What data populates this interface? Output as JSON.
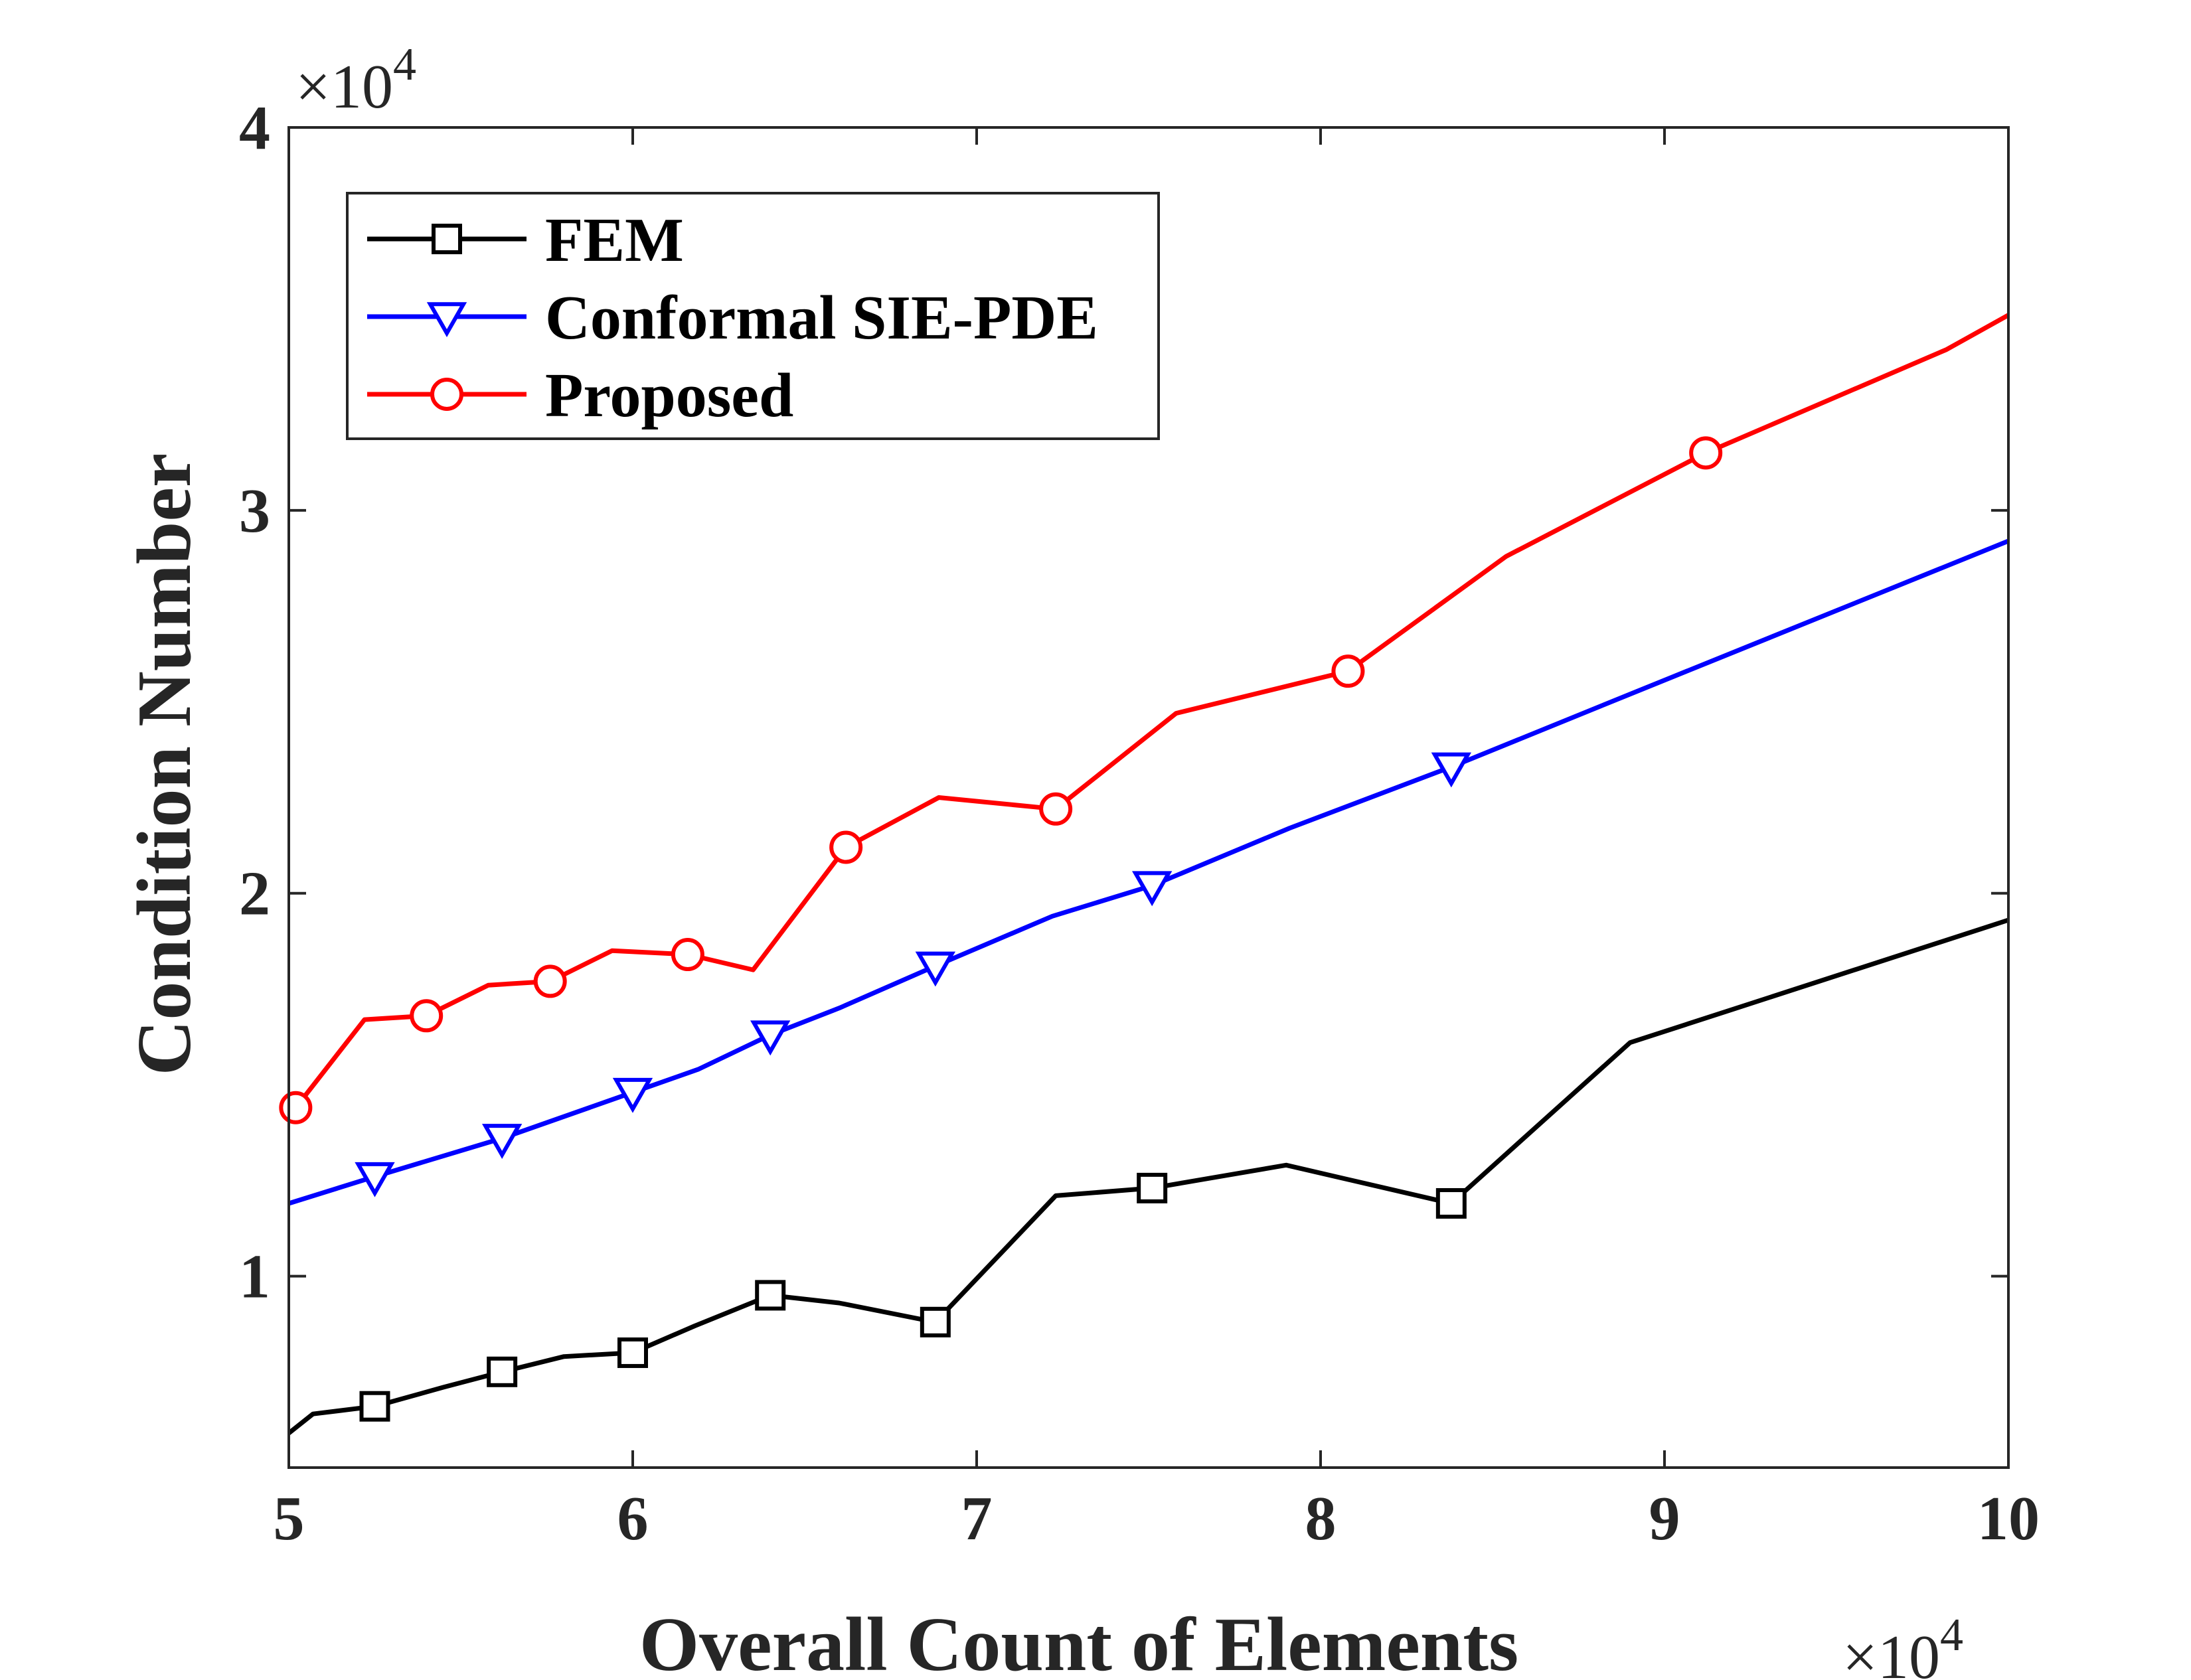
{
  "chart_data": {
    "type": "line",
    "title": "",
    "xlabel": "Overall Count of Elements",
    "ylabel": "Condition Number",
    "x_exponent_label": "×10",
    "x_exponent": "4",
    "y_exponent_label": "×10",
    "y_exponent": "4",
    "xlim": [
      50000,
      100000
    ],
    "ylim": [
      5000,
      40000
    ],
    "xticks": [
      50000,
      60000,
      70000,
      80000,
      90000,
      100000
    ],
    "xtick_labels": [
      "5",
      "6",
      "7",
      "8",
      "9",
      "10"
    ],
    "yticks": [
      10000,
      20000,
      30000,
      40000
    ],
    "ytick_labels": [
      "1",
      "2",
      "3",
      "4"
    ],
    "grid": false,
    "legend_position": "top-left",
    "series": [
      {
        "name": "FEM",
        "color": "#000000",
        "marker": "square",
        "x": [
          50000,
          50700,
          52500,
          54500,
          56200,
          58000,
          60000,
          61800,
          64000,
          66000,
          68800,
          72300,
          75100,
          79000,
          83800,
          89000,
          100000
        ],
        "y": [
          5900,
          6400,
          6600,
          7100,
          7500,
          7900,
          8000,
          8700,
          9500,
          9300,
          8800,
          12100,
          12300,
          12900,
          11900,
          16100,
          19300
        ],
        "marker_x": [
          52500,
          56200,
          60000,
          64000,
          68800,
          75100,
          83800
        ],
        "marker_y": [
          6600,
          7500,
          8000,
          9500,
          8800,
          12300,
          11900
        ]
      },
      {
        "name": "Conformal SIE-PDE",
        "color": "#0000ff",
        "marker": "triangle-down",
        "x": [
          50000,
          52500,
          56200,
          60000,
          61900,
          64000,
          66000,
          68800,
          72200,
          75100,
          79100,
          83800,
          89000,
          100000
        ],
        "y": [
          11900,
          12600,
          13600,
          14800,
          15400,
          16300,
          17000,
          18100,
          19400,
          20200,
          21700,
          23300,
          25200,
          29200
        ],
        "marker_x": [
          52500,
          56200,
          60000,
          64000,
          68800,
          75100,
          83800
        ],
        "marker_y": [
          12600,
          13600,
          14800,
          16300,
          18100,
          20200,
          23300
        ]
      },
      {
        "name": "Proposed",
        "color": "#ff0000",
        "marker": "circle",
        "x": [
          50200,
          52200,
          54000,
          55800,
          57600,
          59400,
          61600,
          63500,
          66200,
          68900,
          72300,
          75800,
          80800,
          85400,
          91200,
          98200,
          100000
        ],
        "y": [
          14400,
          16700,
          16800,
          17600,
          17700,
          18500,
          18400,
          18000,
          21200,
          22500,
          22200,
          24700,
          25800,
          28800,
          31500,
          34200,
          35100
        ],
        "marker_x": [
          50200,
          54000,
          57600,
          61600,
          66200,
          72300,
          80800,
          91200
        ],
        "marker_y": [
          14400,
          16800,
          17700,
          18400,
          21200,
          22200,
          25800,
          31500
        ]
      }
    ]
  }
}
